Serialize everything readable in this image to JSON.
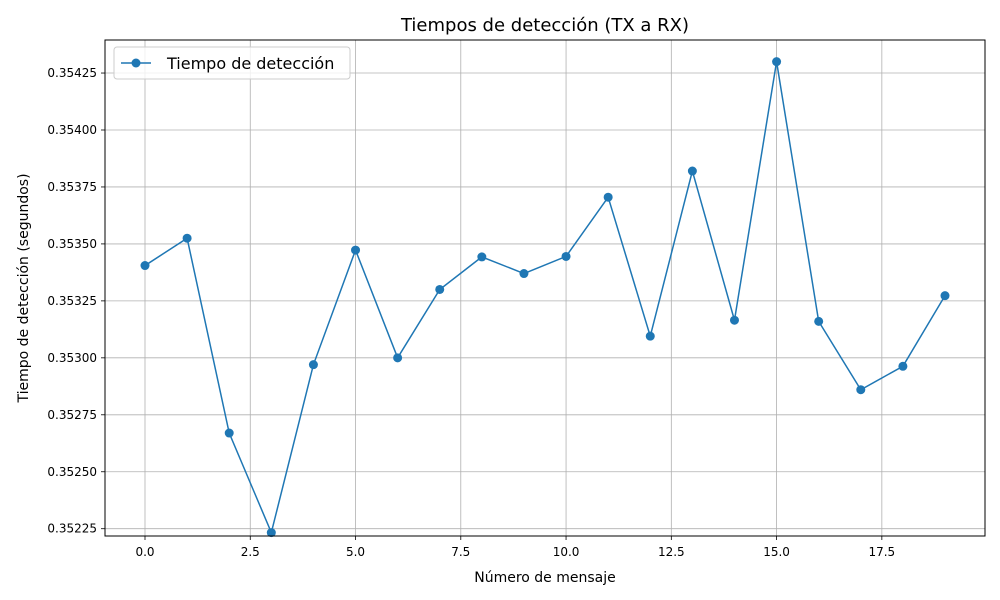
{
  "chart_data": {
    "type": "line",
    "title": "Tiempos de detección (TX a RX)",
    "xlabel": "Número de mensaje",
    "ylabel": "Tiempo de detección (segundos)",
    "xlim": [
      -0.95,
      19.95
    ],
    "ylim": [
      0.352218,
      0.354395
    ],
    "x_ticks": [
      0.0,
      2.5,
      5.0,
      7.5,
      10.0,
      12.5,
      15.0,
      17.5
    ],
    "x_tick_labels": [
      "0.0",
      "2.5",
      "5.0",
      "7.5",
      "10.0",
      "12.5",
      "15.0",
      "17.5"
    ],
    "y_ticks": [
      0.35225,
      0.3525,
      0.35275,
      0.353,
      0.35325,
      0.3535,
      0.35375,
      0.354,
      0.35425
    ],
    "y_tick_labels": [
      "0.35225",
      "0.35250",
      "0.35275",
      "0.35300",
      "0.35325",
      "0.35350",
      "0.35375",
      "0.35400",
      "0.35425"
    ],
    "grid": true,
    "legend_position": "top-left",
    "color": "#1f77b4",
    "series": [
      {
        "name": "Tiempo de detección",
        "x": [
          0,
          1,
          2,
          3,
          4,
          5,
          6,
          7,
          8,
          9,
          10,
          11,
          12,
          13,
          14,
          15,
          16,
          17,
          18,
          19
        ],
        "y": [
          0.353405,
          0.353525,
          0.35267,
          0.352233,
          0.35297,
          0.353473,
          0.353,
          0.3533,
          0.353443,
          0.35337,
          0.353445,
          0.353705,
          0.353095,
          0.35382,
          0.353165,
          0.3543,
          0.35316,
          0.35286,
          0.352963,
          0.353273
        ]
      }
    ]
  }
}
